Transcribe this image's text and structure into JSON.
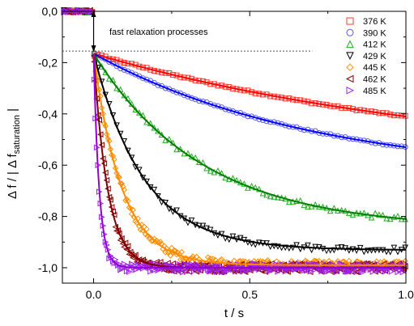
{
  "chart_data": {
    "type": "scatter",
    "xlabel": "t / s",
    "ylabel_main": "Δ f / | Δ f",
    "ylabel_sub": "saturation",
    "ylabel_tail": " |",
    "xlim": [
      -0.1,
      1.0
    ],
    "ylim": [
      -1.06,
      0.0
    ],
    "x_ticks": [
      0.0,
      0.5,
      1.0
    ],
    "x_tick_labels": [
      "0.0",
      "0.5",
      "1.0"
    ],
    "y_ticks": [
      0.0,
      -0.2,
      -0.4,
      -0.6,
      -0.8,
      -1.0
    ],
    "y_tick_labels": [
      "0,0",
      "-0,2",
      "-0,4",
      "-0,6",
      "-0,8",
      "-1,0"
    ],
    "grid": false,
    "legend_position": "top-right",
    "annotation": {
      "text": "fast relaxation processes",
      "arrow_x": 0.0,
      "arrow_from_y": 0.0,
      "arrow_to_y": -0.155,
      "dotted_line_y": -0.155,
      "dotted_line_x": [
        -0.1,
        0.7
      ]
    },
    "common": {
      "initial_drop_to": -0.165,
      "final_value": -1.0
    },
    "series": [
      {
        "name": "376 K",
        "marker": "square",
        "color": "#ff3b30",
        "fit_color": "#ff0000",
        "tau": 1.2,
        "final_value_at_1s": -0.41
      },
      {
        "name": "390 K",
        "marker": "circle",
        "color": "#5a5aff",
        "fit_color": "#0000ff",
        "tau": 0.72,
        "final_value_at_1s": -0.53
      },
      {
        "name": "412 K",
        "marker": "triangle-up",
        "color": "#22aa22",
        "fit_color": "#008000",
        "tau": 0.35,
        "final_value_at_1s": -0.81
      },
      {
        "name": "429 K",
        "marker": "triangle-down",
        "color": "#000000",
        "fit_color": "#000000",
        "tau": 0.16,
        "final_value_at_1s": -0.93
      },
      {
        "name": "445 K",
        "marker": "diamond",
        "color": "#ff8c00",
        "fit_color": "#ff8c00",
        "tau": 0.09,
        "final_value_at_1s": -0.99
      },
      {
        "name": "462 K",
        "marker": "triangle-left",
        "color": "#8b0000",
        "fit_color": "#800000",
        "tau": 0.045,
        "final_value_at_1s": -1.0
      },
      {
        "name": "485 K",
        "marker": "triangle-right",
        "color": "#a020f0",
        "fit_color": "#9400d3",
        "tau": 0.018,
        "final_value_at_1s": -1.0
      }
    ]
  }
}
